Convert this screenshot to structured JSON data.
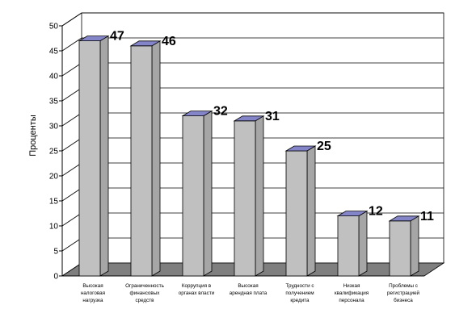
{
  "chart_data": {
    "type": "bar",
    "title": "",
    "xlabel": "",
    "ylabel": "Проценты",
    "ylim": [
      0,
      50
    ],
    "y_ticks": [
      0,
      5,
      10,
      15,
      20,
      25,
      30,
      35,
      40,
      45,
      50
    ],
    "grid": true,
    "three_d": true,
    "categories": [
      [
        "Высокая",
        "налоговая",
        "нагрузка"
      ],
      [
        "Ограниченность",
        "финансовых",
        "средств"
      ],
      [
        "Коррупция в",
        "органах власти"
      ],
      [
        "Высокая",
        "арендная плата"
      ],
      [
        "Трудности с",
        "получением",
        "кредита"
      ],
      [
        "Низкая",
        "квалификация",
        "персонала"
      ],
      [
        "Проблемы с",
        "регистрацией",
        "бизнеса"
      ]
    ],
    "values": [
      47,
      46,
      32,
      31,
      25,
      12,
      11
    ],
    "colors": {
      "bar_front": "#c0c0c0",
      "bar_side": "#a6a6a6",
      "bar_top": "#8484c8",
      "wall": "#ffffff",
      "floor": "#7f7f7f",
      "grid": "#000000"
    }
  }
}
